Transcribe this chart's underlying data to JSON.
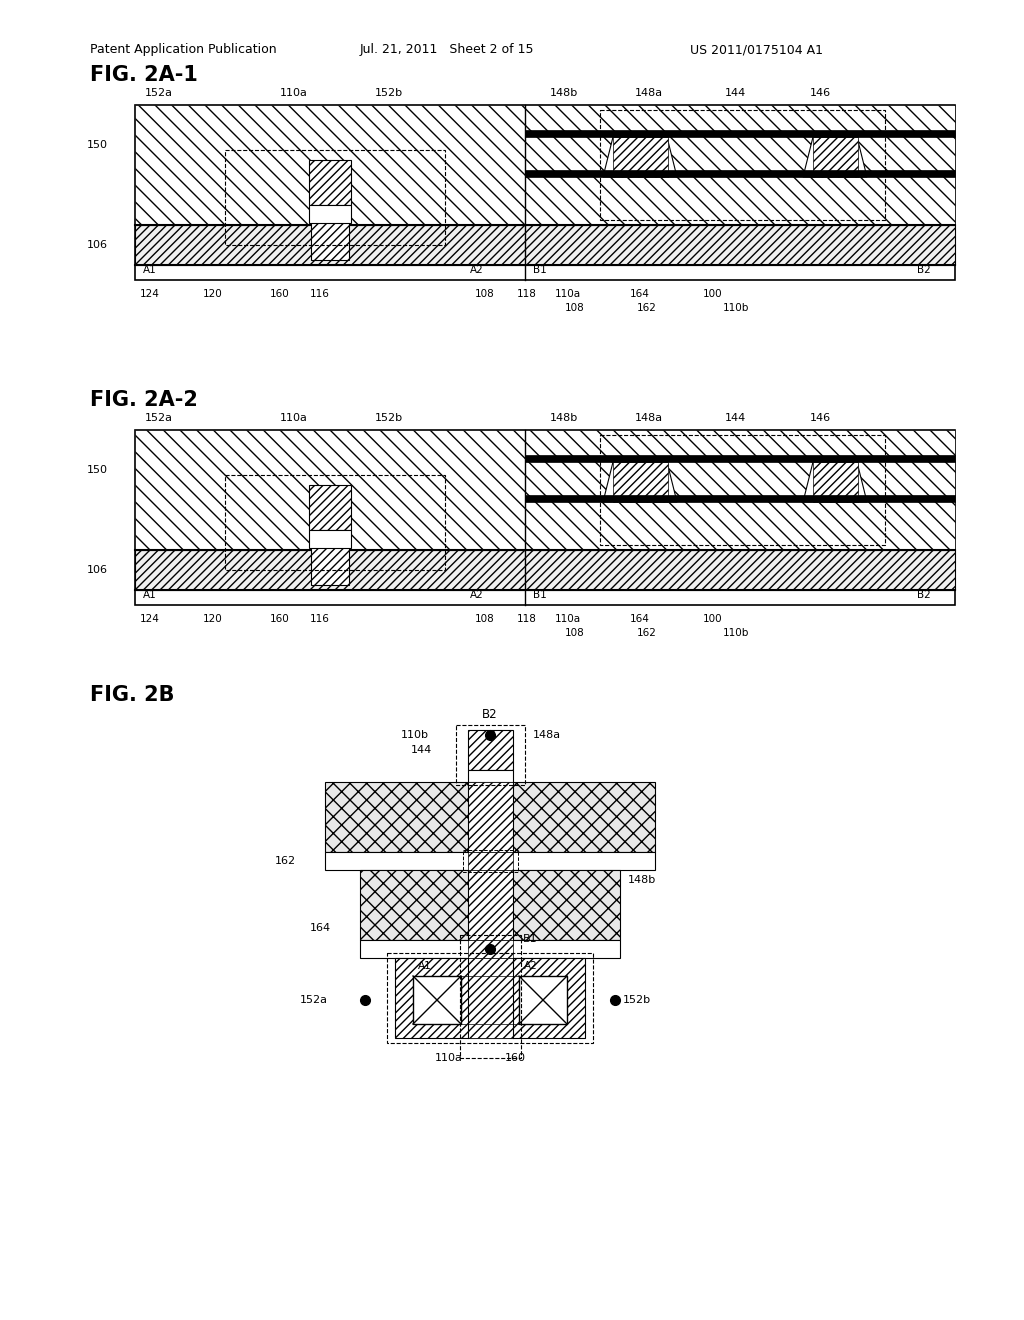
{
  "header_left": "Patent Application Publication",
  "header_mid": "Jul. 21, 2011   Sheet 2 of 15",
  "header_right": "US 2011/0175104 A1",
  "bg_color": "#ffffff",
  "line_color": "#000000"
}
